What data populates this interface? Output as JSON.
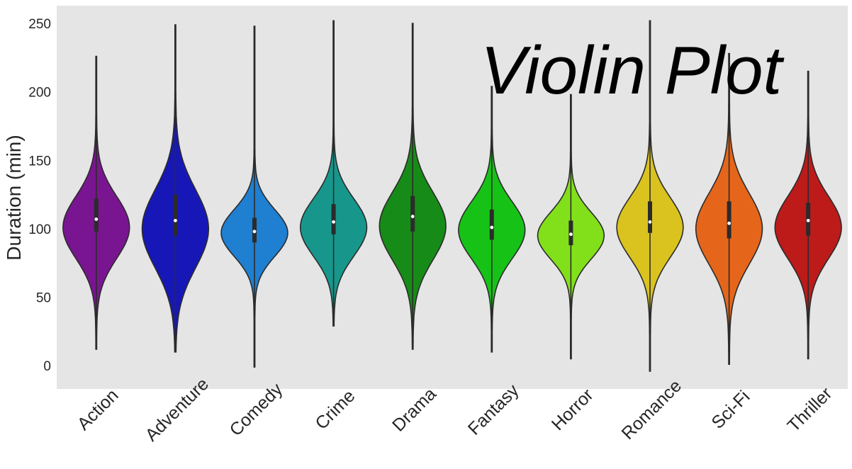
{
  "chart_data": {
    "type": "violin",
    "title": "Violin Plot",
    "xlabel": "",
    "ylabel": "Duration (min)",
    "ylim": [
      -17,
      263
    ],
    "yticks": [
      0,
      50,
      100,
      150,
      200,
      250
    ],
    "grid": false,
    "background": "#e5e5e5",
    "categories": [
      "Action",
      "Adventure",
      "Comedy",
      "Crime",
      "Drama",
      "Fantasy",
      "Horror",
      "Romance",
      "Sci-Fi",
      "Thriller"
    ],
    "series": [
      {
        "category": "Action",
        "color": "#7a1591",
        "min": 12,
        "max": 226,
        "q1": 98,
        "median": 107,
        "q3": 122,
        "mode": 101
      },
      {
        "category": "Adventure",
        "color": "#1717b8",
        "min": 10,
        "max": 249,
        "q1": 95,
        "median": 106,
        "q3": 125,
        "mode": 100
      },
      {
        "category": "Comedy",
        "color": "#1f7fd1",
        "min": -1,
        "max": 248,
        "q1": 90,
        "median": 98,
        "q3": 108,
        "mode": 97
      },
      {
        "category": "Crime",
        "color": "#17978c",
        "min": 29,
        "max": 252,
        "q1": 96,
        "median": 105,
        "q3": 118,
        "mode": 101
      },
      {
        "category": "Drama",
        "color": "#178b17",
        "min": 12,
        "max": 250,
        "q1": 98,
        "median": 109,
        "q3": 124,
        "mode": 102
      },
      {
        "category": "Fantasy",
        "color": "#17c217",
        "min": 10,
        "max": 204,
        "q1": 92,
        "median": 101,
        "q3": 114,
        "mode": 99
      },
      {
        "category": "Horror",
        "color": "#82e01a",
        "min": 5,
        "max": 198,
        "q1": 88,
        "median": 96,
        "q3": 106,
        "mode": 95
      },
      {
        "category": "Romance",
        "color": "#dac31f",
        "min": -4,
        "max": 252,
        "q1": 97,
        "median": 105,
        "q3": 120,
        "mode": 101
      },
      {
        "category": "Sci-Fi",
        "color": "#e5661a",
        "min": 1,
        "max": 228,
        "q1": 93,
        "median": 104,
        "q3": 120,
        "mode": 100
      },
      {
        "category": "Thriller",
        "color": "#bd1a1a",
        "min": 5,
        "max": 215,
        "q1": 95,
        "median": 106,
        "q3": 119,
        "mode": 101
      }
    ]
  }
}
